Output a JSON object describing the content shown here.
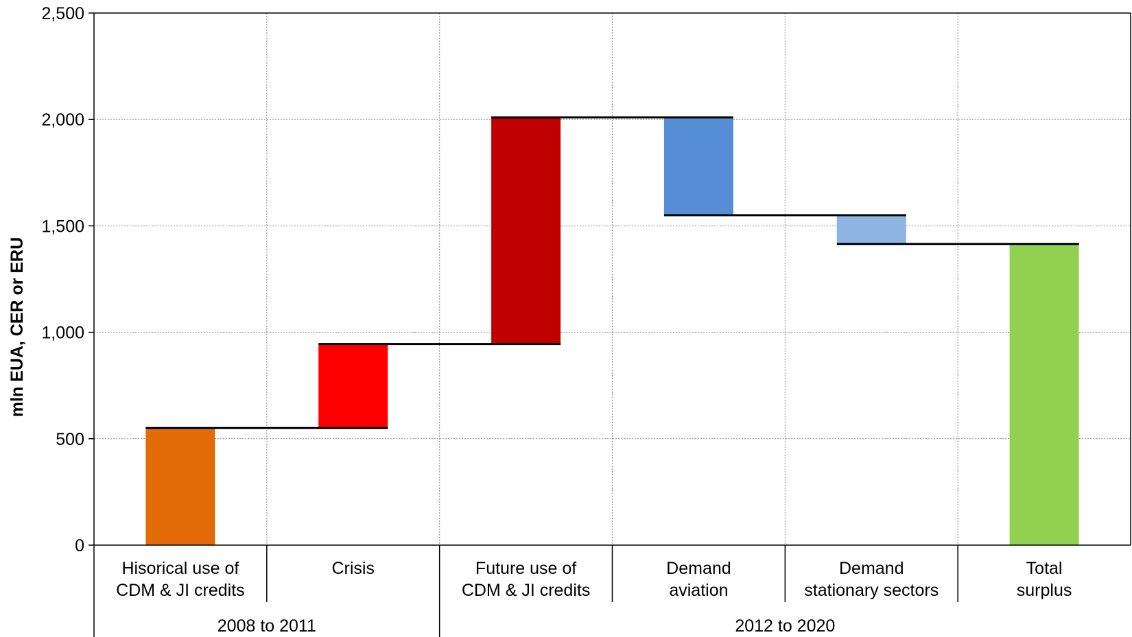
{
  "chart_data": {
    "type": "bar",
    "subtype": "waterfall",
    "ylabel": "mln EUA, CER or ERU",
    "ylim": [
      0,
      2500
    ],
    "yticks": [
      0,
      500,
      1000,
      1500,
      2000,
      2500
    ],
    "ytick_labels": [
      "0",
      "500",
      "1,000",
      "1,500",
      "2,000",
      "2,500"
    ],
    "grid": true,
    "categories": [
      [
        "Hisorical use of",
        "CDM & JI credits"
      ],
      [
        "Crisis"
      ],
      [
        "Future use of",
        "CDM & JI credits"
      ],
      [
        "Demand",
        "aviation"
      ],
      [
        "Demand",
        "stationary sectors"
      ],
      [
        "Total",
        "surplus"
      ]
    ],
    "bars": [
      {
        "start": 0,
        "end": 550,
        "color": "#E36C09"
      },
      {
        "start": 550,
        "end": 945,
        "color": "#FF0000"
      },
      {
        "start": 945,
        "end": 2010,
        "color": "#C00000"
      },
      {
        "start": 2010,
        "end": 1550,
        "color": "#558ED5"
      },
      {
        "start": 1550,
        "end": 1415,
        "color": "#8DB4E2"
      },
      {
        "start": 0,
        "end": 1415,
        "color": "#92D050"
      }
    ],
    "connectors": [
      {
        "from": 0,
        "to": 1,
        "value": 550
      },
      {
        "from": 1,
        "to": 2,
        "value": 945
      },
      {
        "from": 2,
        "to": 3,
        "value": 2010
      },
      {
        "from": 3,
        "to": 4,
        "value": 1550
      },
      {
        "from": 4,
        "to": 5,
        "value": 1415
      }
    ],
    "groups": [
      {
        "label": "2008 to 2011",
        "categories": [
          0,
          1
        ]
      },
      {
        "label": "2012 to 2020",
        "categories": [
          2,
          3,
          4,
          5
        ]
      }
    ]
  }
}
